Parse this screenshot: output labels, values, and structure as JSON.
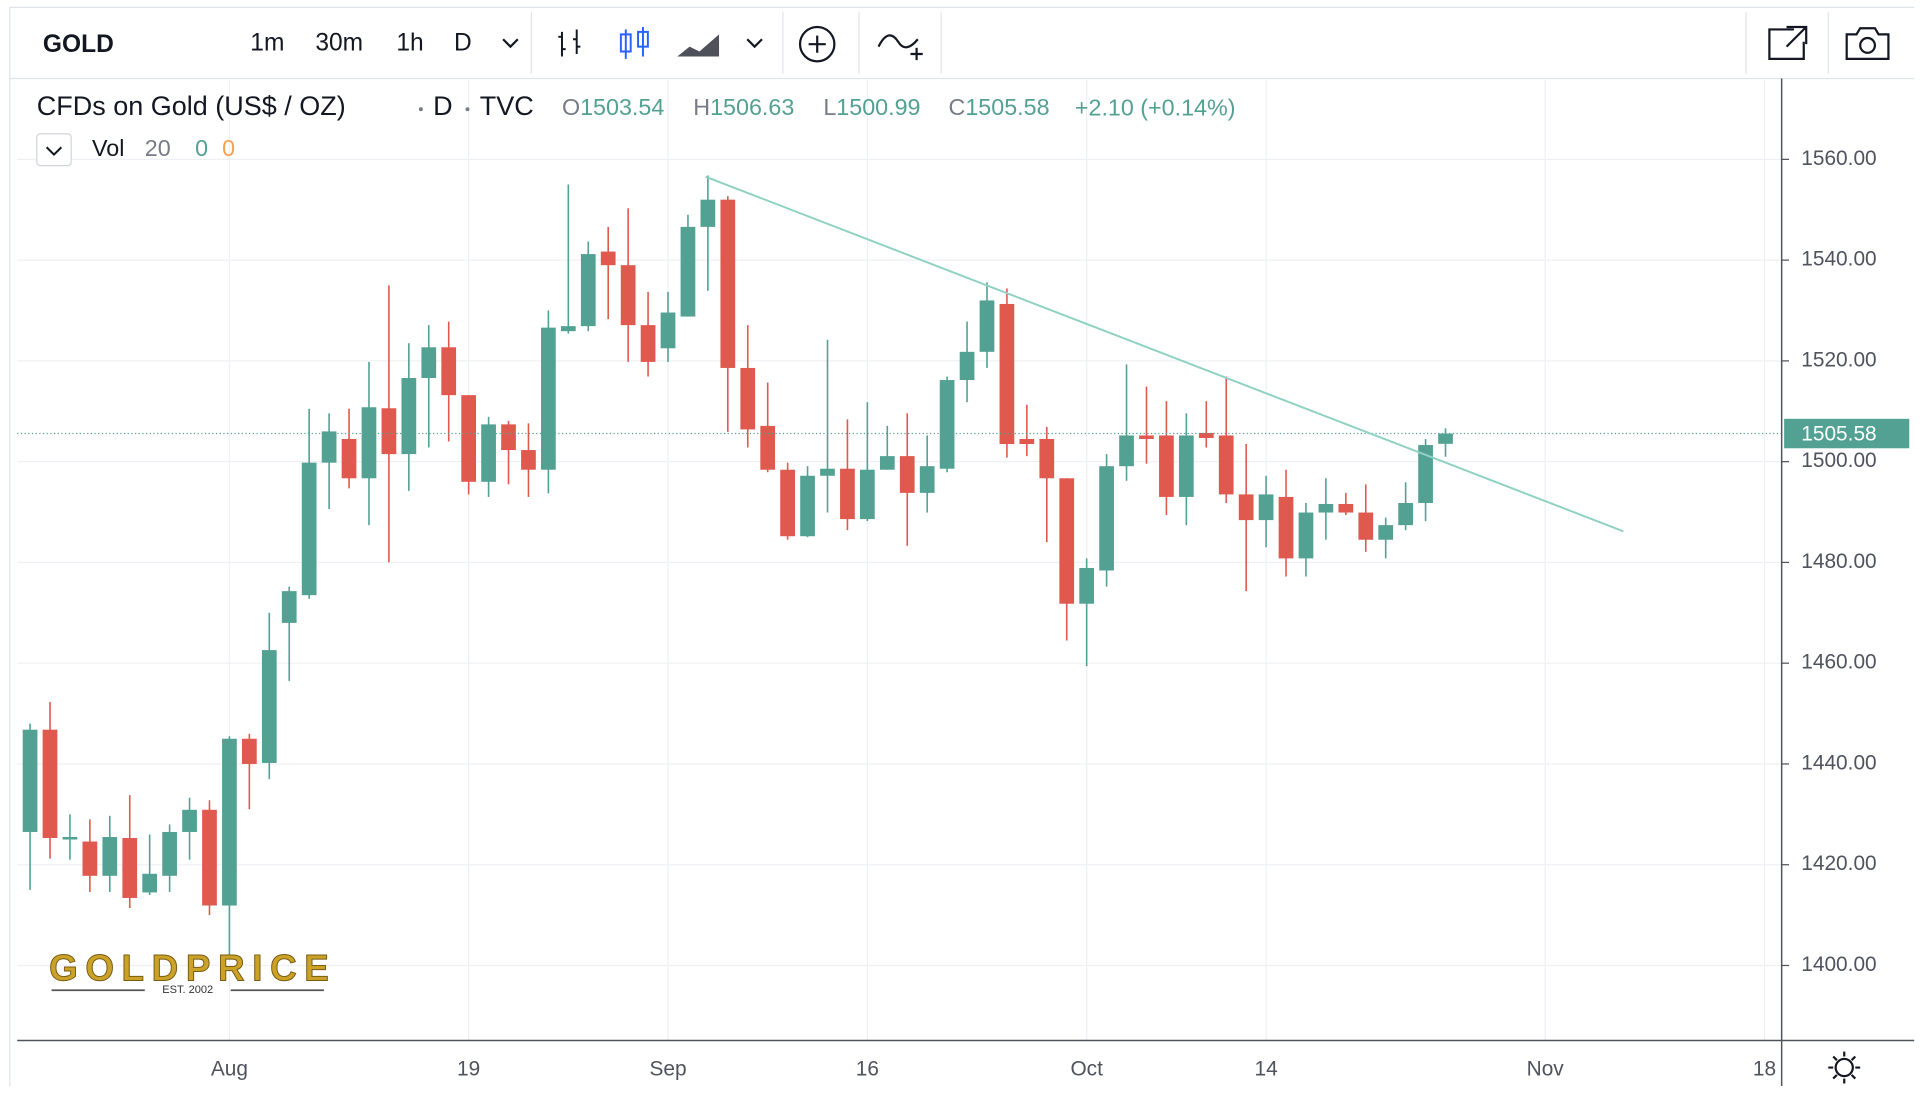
{
  "toolbar": {
    "symbol": "GOLD",
    "intervals": [
      "1m",
      "30m",
      "1h",
      "D"
    ],
    "active_interval": 3
  },
  "legend": {
    "vol_label": "Vol",
    "vol_length": "20",
    "vol_values": [
      "0",
      "0"
    ]
  },
  "watermark": {
    "brand": "GOLDPRICE",
    "since": "EST. 2002"
  },
  "chart_data": {
    "type": "candlestick",
    "title": "CFDs on Gold (US$ / OZ)",
    "interval": "D",
    "source": "TVC",
    "ohlc_letters": [
      "O",
      "H",
      "L",
      "C"
    ],
    "change": "+2.10 (+0.14%)",
    "up_color": "#53a193",
    "down_color": "#e0594f",
    "grid": true,
    "last_price_line": true,
    "categories": [
      null,
      null,
      null,
      null,
      null,
      null,
      null,
      null,
      null,
      null,
      "Aug",
      null,
      null,
      null,
      null,
      null,
      null,
      null,
      null,
      null,
      null,
      null,
      "19",
      null,
      null,
      null,
      null,
      null,
      null,
      null,
      null,
      null,
      "Sep",
      null,
      null,
      null,
      null,
      null,
      null,
      null,
      null,
      null,
      "16",
      null,
      null,
      null,
      null,
      null,
      null,
      null,
      null,
      null,
      null,
      "Oct",
      null,
      null,
      null,
      null,
      null,
      null,
      null,
      null,
      "14",
      null,
      null,
      null,
      null,
      null,
      null,
      null,
      null,
      null,
      null,
      null,
      null,
      null,
      "Nov",
      null,
      null,
      null,
      null,
      null,
      null,
      null,
      null,
      null,
      null,
      "18"
    ],
    "open": [
      1426.5,
      1446.8,
      1425,
      1424.6,
      1417.8,
      1425.3,
      1414.5,
      1417.8,
      1426.5,
      1430.9,
      1411.9,
      1445,
      1440.2,
      1468,
      1473.5,
      1499.8,
      1504.5,
      1496.7,
      1510.6,
      1501.5,
      1516.6,
      1522.7,
      1513.2,
      1496,
      1507.4,
      1502.3,
      1498.4,
      1525.9,
      1526.9,
      1541.7,
      1539,
      1527.1,
      1522.5,
      1528.8,
      1546.6,
      1552,
      1518.6,
      1507.1,
      1498.4,
      1485.2,
      1497.2,
      1498.6,
      1488.6,
      1498.4,
      1501.1,
      1493.8,
      1498.6,
      1516.2,
      1521.8,
      1531.3,
      1504.5,
      1504.5,
      1496.7,
      1471.8,
      1478.4,
      1499.1,
      1505.2,
      1505.2,
      1493,
      1505.7,
      1505.2,
      1493.5,
      1488.4,
      1493,
      1480.8,
      1489.9,
      1491.6,
      1489.9,
      1484.5,
      1487.4,
      1491.8,
      1503.54,
      null,
      null,
      null,
      null,
      null,
      null,
      null,
      null,
      null,
      null,
      null,
      null,
      null,
      null,
      null,
      null
    ],
    "high": [
      1448,
      1452.3,
      1430,
      1429,
      1429.7,
      1433.8,
      1426,
      1428,
      1433.3,
      1432.8,
      1445.5,
      1446,
      1470,
      1475.2,
      1510.5,
      1509.6,
      1510.5,
      1519.8,
      1535,
      1523.5,
      1527.1,
      1527.8,
      1513.2,
      1508.9,
      1508.1,
      1507.6,
      1530,
      1555,
      1543.7,
      1546.6,
      1550.3,
      1533.7,
      1533.7,
      1549,
      1556.8,
      1552.7,
      1527.1,
      1515.7,
      1499.8,
      1499.1,
      1524.2,
      1508.4,
      1511.8,
      1507.1,
      1509.6,
      1505.2,
      1516.9,
      1527.8,
      1535.6,
      1534.4,
      1511.3,
      1506.9,
      1496.7,
      1480.8,
      1501.5,
      1519.3,
      1514.9,
      1512,
      1509.6,
      1512,
      1516.9,
      1503.5,
      1497.2,
      1498.4,
      1491.8,
      1496.7,
      1493.8,
      1495.5,
      1488.9,
      1495.9,
      1504.5,
      1506.63,
      null,
      null,
      null,
      null,
      null,
      null,
      null,
      null,
      null,
      null,
      null,
      null,
      null,
      null,
      null,
      null
    ],
    "low": [
      1415,
      1421.2,
      1421,
      1414.6,
      1414.6,
      1411.4,
      1414,
      1414.6,
      1421,
      1410,
      1402,
      1431,
      1437,
      1456.5,
      1472.8,
      1490.6,
      1494.7,
      1487.4,
      1480,
      1494.2,
      1502.8,
      1504,
      1493.5,
      1493,
      1495.5,
      1493,
      1493.7,
      1525.4,
      1525.9,
      1528.3,
      1519.8,
      1516.9,
      1519.8,
      1528.8,
      1533.9,
      1505.9,
      1502.8,
      1497.9,
      1484.5,
      1485,
      1489.9,
      1486.4,
      1488.2,
      1498.4,
      1483.3,
      1489.9,
      1497.9,
      1511.8,
      1518.6,
      1500.8,
      1501.1,
      1484,
      1464.5,
      1459.4,
      1475.2,
      1496.2,
      1499.6,
      1489.4,
      1487.4,
      1502.8,
      1491.8,
      1474.3,
      1483,
      1477.2,
      1477.2,
      1484.5,
      1489.4,
      1482.1,
      1480.8,
      1486.4,
      1488.2,
      1500.99,
      null,
      null,
      null,
      null,
      null,
      null,
      null,
      null,
      null,
      null,
      null,
      null,
      null,
      null,
      null,
      null
    ],
    "close": [
      1446.8,
      1425.3,
      1425.5,
      1417.8,
      1425.5,
      1413.4,
      1418.2,
      1426.5,
      1430.9,
      1411.9,
      1445,
      1440,
      1462.6,
      1474.3,
      1499.8,
      1506,
      1496.7,
      1510.8,
      1501.5,
      1516.6,
      1522.7,
      1513.2,
      1496,
      1507.4,
      1502.3,
      1498.4,
      1526.6,
      1526.9,
      1541.2,
      1539,
      1527.1,
      1519.8,
      1529.6,
      1546.6,
      1552,
      1518.6,
      1506.4,
      1498.4,
      1485.2,
      1497.2,
      1498.6,
      1488.6,
      1498.4,
      1501.1,
      1493.8,
      1499.1,
      1516.2,
      1521.8,
      1532,
      1503.5,
      1503.5,
      1496.7,
      1471.8,
      1478.9,
      1499.1,
      1505.2,
      1504.5,
      1493,
      1505.2,
      1504.7,
      1493.5,
      1488.4,
      1493.5,
      1480.8,
      1489.9,
      1491.6,
      1489.9,
      1484.5,
      1487.4,
      1491.8,
      1503.3,
      1505.58,
      null,
      null,
      null,
      null,
      null,
      null,
      null,
      null,
      null,
      null,
      null,
      null,
      null,
      null,
      null,
      null
    ],
    "ylim": [
      1385.1,
      1575.8
    ],
    "yticks": [
      {
        "value": 1400,
        "label": "1400.00"
      },
      {
        "value": 1420,
        "label": "1420.00"
      },
      {
        "value": 1440,
        "label": "1440.00"
      },
      {
        "value": 1460,
        "label": "1460.00"
      },
      {
        "value": 1480,
        "label": "1480.00"
      },
      {
        "value": 1500,
        "label": "1500.00"
      },
      {
        "value": 1520,
        "label": "1520.00"
      },
      {
        "value": 1540,
        "label": "1540.00"
      },
      {
        "value": 1560,
        "label": "1560.00"
      }
    ]
  }
}
